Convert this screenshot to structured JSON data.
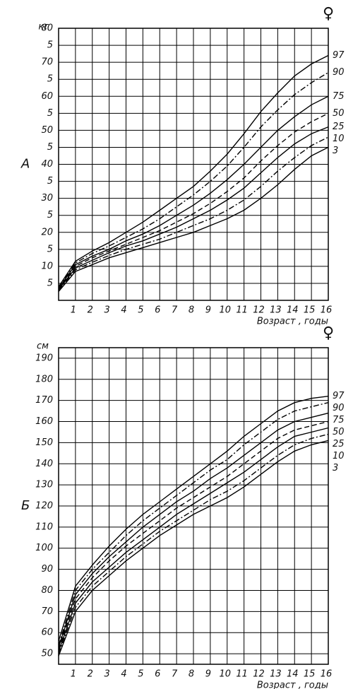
{
  "chart_data": [
    {
      "type": "line",
      "panel_label": "А",
      "symbol": "♀",
      "y_unit": "кг",
      "x_label": "Возраст , годы",
      "x": [
        0,
        1,
        2,
        3,
        4,
        5,
        6,
        7,
        8,
        9,
        10,
        11,
        12,
        13,
        14,
        15,
        16
      ],
      "xlim": [
        0,
        16
      ],
      "ylim": [
        0,
        80
      ],
      "xticks": [
        1,
        2,
        3,
        4,
        5,
        6,
        7,
        8,
        9,
        10,
        11,
        12,
        13,
        14,
        15,
        16
      ],
      "yticks": [
        5,
        10,
        {
          "value": 15,
          "label": "5"
        },
        20,
        {
          "value": 25,
          "label": "5"
        },
        30,
        {
          "value": 35,
          "label": "5"
        },
        40,
        {
          "value": 45,
          "label": "5"
        },
        50,
        {
          "value": 55,
          "label": "5"
        },
        60,
        {
          "value": 65,
          "label": "5"
        },
        70,
        {
          "value": 75,
          "label": "5"
        },
        80
      ],
      "grid": true,
      "series": [
        {
          "name": "97",
          "color": "#000000",
          "dash": "solid",
          "values": [
            4,
            11.5,
            14.5,
            17,
            20,
            23,
            26.5,
            30,
            33.5,
            38,
            43,
            49,
            55.5,
            61,
            66,
            69.5,
            72
          ]
        },
        {
          "name": "90",
          "color": "#000000",
          "dash": "dashdot",
          "values": [
            3.8,
            11,
            13.8,
            16,
            18.5,
            21,
            24,
            27.5,
            31,
            35,
            39.5,
            45,
            51,
            56,
            60.5,
            64,
            67
          ]
        },
        {
          "name": "75",
          "color": "#000000",
          "dash": "solid",
          "values": [
            3.5,
            10.5,
            13,
            15,
            17.5,
            19.5,
            22,
            25,
            28,
            31.5,
            35.5,
            40,
            45,
            50,
            54,
            57.5,
            60
          ]
        },
        {
          "name": "50",
          "color": "#000000",
          "dash": "dashed",
          "values": [
            3.3,
            10,
            12.5,
            14.5,
            16.5,
            18.5,
            20.5,
            23,
            25.5,
            28.5,
            32,
            36,
            41,
            45.5,
            49.5,
            52.5,
            55
          ]
        },
        {
          "name": "25",
          "color": "#000000",
          "dash": "solid",
          "values": [
            3.1,
            9.5,
            11.8,
            14,
            16,
            17.5,
            19.5,
            21.5,
            24,
            26.5,
            29.5,
            33,
            37.5,
            42,
            46,
            49,
            51
          ]
        },
        {
          "name": "10",
          "color": "#000000",
          "dash": "dashdot",
          "values": [
            2.9,
            9,
            11.2,
            13.2,
            15,
            16.5,
            18,
            20,
            22,
            24,
            26.5,
            29.5,
            33.5,
            38,
            42,
            45.5,
            48
          ]
        },
        {
          "name": "3",
          "color": "#000000",
          "dash": "solid",
          "values": [
            2.6,
            8.5,
            10.5,
            12.5,
            14,
            15.5,
            17,
            18.5,
            20,
            22,
            24,
            26.5,
            30,
            34,
            38.5,
            42.5,
            45
          ]
        }
      ]
    },
    {
      "type": "line",
      "panel_label": "Б",
      "symbol": "♀",
      "y_unit": "см",
      "x_label": "Возраст , годы",
      "x": [
        0,
        1,
        2,
        3,
        4,
        5,
        6,
        7,
        8,
        9,
        10,
        11,
        12,
        13,
        14,
        15,
        16
      ],
      "xlim": [
        0,
        16
      ],
      "ylim": [
        45,
        195
      ],
      "xticks": [
        1,
        2,
        3,
        4,
        5,
        6,
        7,
        8,
        9,
        10,
        11,
        12,
        13,
        14,
        15,
        16
      ],
      "yticks": [
        50,
        60,
        70,
        80,
        90,
        100,
        110,
        120,
        130,
        140,
        150,
        160,
        170,
        180,
        190
      ],
      "grid": true,
      "series": [
        {
          "name": "97",
          "color": "#000000",
          "dash": "solid",
          "values": [
            56,
            82,
            92,
            101,
            109,
            116,
            122,
            128,
            134,
            140,
            146,
            153,
            159,
            165,
            169,
            171,
            172
          ]
        },
        {
          "name": "90",
          "color": "#000000",
          "dash": "dashdot",
          "values": [
            54,
            80,
            90,
            98,
            106,
            113,
            119,
            125,
            131,
            137,
            142,
            149,
            155,
            161,
            165,
            167,
            169
          ]
        },
        {
          "name": "75",
          "color": "#000000",
          "dash": "solid",
          "values": [
            53,
            78,
            88,
            96,
            103,
            110,
            116,
            122,
            127,
            133,
            138,
            144,
            150,
            156,
            160,
            162,
            164
          ]
        },
        {
          "name": "50",
          "color": "#000000",
          "dash": "dashed",
          "values": [
            52,
            76,
            86,
            94,
            101,
            107,
            113,
            119,
            124,
            129,
            134,
            140,
            146,
            152,
            156,
            158,
            160
          ]
        },
        {
          "name": "25",
          "color": "#000000",
          "dash": "solid",
          "values": [
            51,
            74,
            84,
            91,
            98,
            104,
            110,
            116,
            121,
            126,
            131,
            136,
            142,
            148,
            153,
            155,
            157
          ]
        },
        {
          "name": "10",
          "color": "#000000",
          "dash": "dashdot",
          "values": [
            50,
            72,
            82,
            89,
            96,
            102,
            108,
            113,
            118,
            123,
            127,
            132,
            138,
            144,
            149,
            152,
            154
          ]
        },
        {
          "name": "3",
          "color": "#000000",
          "dash": "solid",
          "values": [
            49,
            70,
            80,
            87,
            94,
            100,
            106,
            111,
            116,
            120,
            124,
            129,
            135,
            141,
            146,
            149,
            151
          ]
        }
      ]
    }
  ]
}
